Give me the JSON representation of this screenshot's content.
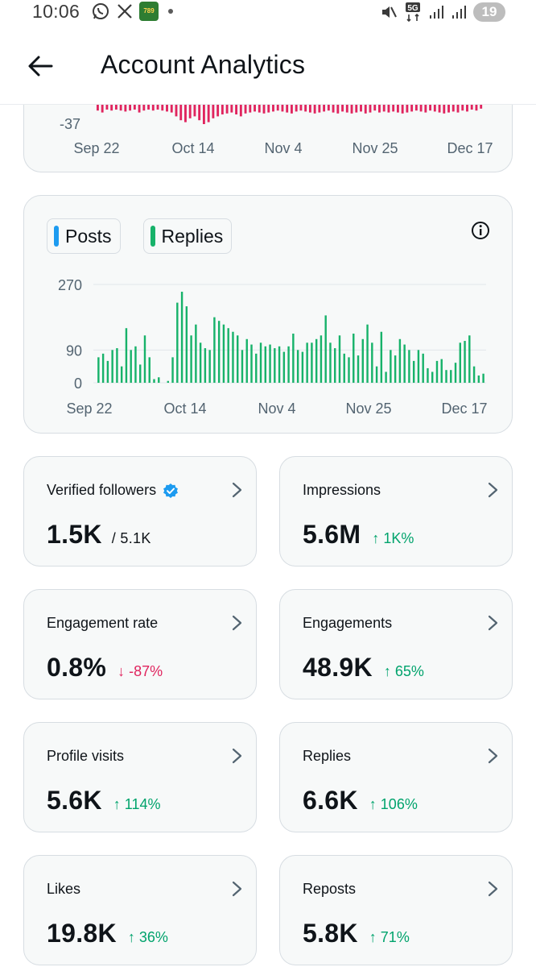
{
  "status_bar": {
    "time": "10:06",
    "app_badge_text": "789",
    "network": "5G",
    "battery": "19"
  },
  "header": {
    "title": "Account Analytics"
  },
  "top_chart_axis": {
    "min_label": "-37",
    "x_ticks": [
      "Sep 22",
      "Oct 14",
      "Nov 4",
      "Nov 25",
      "Dec 17"
    ]
  },
  "legend": {
    "posts": "Posts",
    "replies": "Replies",
    "posts_color": "#1d9bf0",
    "replies_color": "#17b26a"
  },
  "chart_data": {
    "type": "bar",
    "series": [
      {
        "name": "Replies",
        "values": [
          70,
          80,
          60,
          90,
          95,
          45,
          150,
          90,
          100,
          50,
          130,
          70,
          10,
          15,
          0,
          5,
          70,
          220,
          250,
          210,
          130,
          160,
          110,
          95,
          90,
          180,
          170,
          160,
          150,
          140,
          130,
          90,
          120,
          105,
          80,
          110,
          100,
          105,
          95,
          100,
          85,
          100,
          135,
          90,
          85,
          110,
          110,
          120,
          130,
          185,
          110,
          95,
          130,
          80,
          70,
          135,
          75,
          120,
          160,
          110,
          45,
          140,
          30,
          90,
          75,
          120,
          105,
          90,
          60,
          90,
          80,
          40,
          30,
          60,
          65,
          35,
          35,
          55,
          110,
          115,
          130,
          45,
          20,
          25
        ]
      }
    ],
    "x_ticks": [
      "Sep 22",
      "Oct 14",
      "Nov 4",
      "Nov 25",
      "Dec 17"
    ],
    "y_ticks": [
      "0",
      "90",
      "270"
    ],
    "ylim": [
      0,
      270
    ]
  },
  "metrics": [
    {
      "label": "Verified followers",
      "value": "1.5K",
      "sub": "/ 5.1K",
      "delta": "",
      "trend": "none",
      "verified": true
    },
    {
      "label": "Impressions",
      "value": "5.6M",
      "sub": "",
      "delta": "↑ 1K%",
      "trend": "up",
      "verified": false
    },
    {
      "label": "Engagement rate",
      "value": "0.8%",
      "sub": "",
      "delta": "↓ -87%",
      "trend": "down",
      "verified": false
    },
    {
      "label": "Engagements",
      "value": "48.9K",
      "sub": "",
      "delta": "↑ 65%",
      "trend": "up",
      "verified": false
    },
    {
      "label": "Profile visits",
      "value": "5.6K",
      "sub": "",
      "delta": "↑ 114%",
      "trend": "up",
      "verified": false
    },
    {
      "label": "Replies",
      "value": "6.6K",
      "sub": "",
      "delta": "↑ 106%",
      "trend": "up",
      "verified": false
    },
    {
      "label": "Likes",
      "value": "19.8K",
      "sub": "",
      "delta": "↑ 36%",
      "trend": "up",
      "verified": false
    },
    {
      "label": "Reposts",
      "value": "5.8K",
      "sub": "",
      "delta": "↑ 71%",
      "trend": "up",
      "verified": false
    }
  ],
  "colors": {
    "up": "#00a36c",
    "down": "#e0245e",
    "accent": "#1d9bf0",
    "negative_bar": "#e0245e"
  }
}
